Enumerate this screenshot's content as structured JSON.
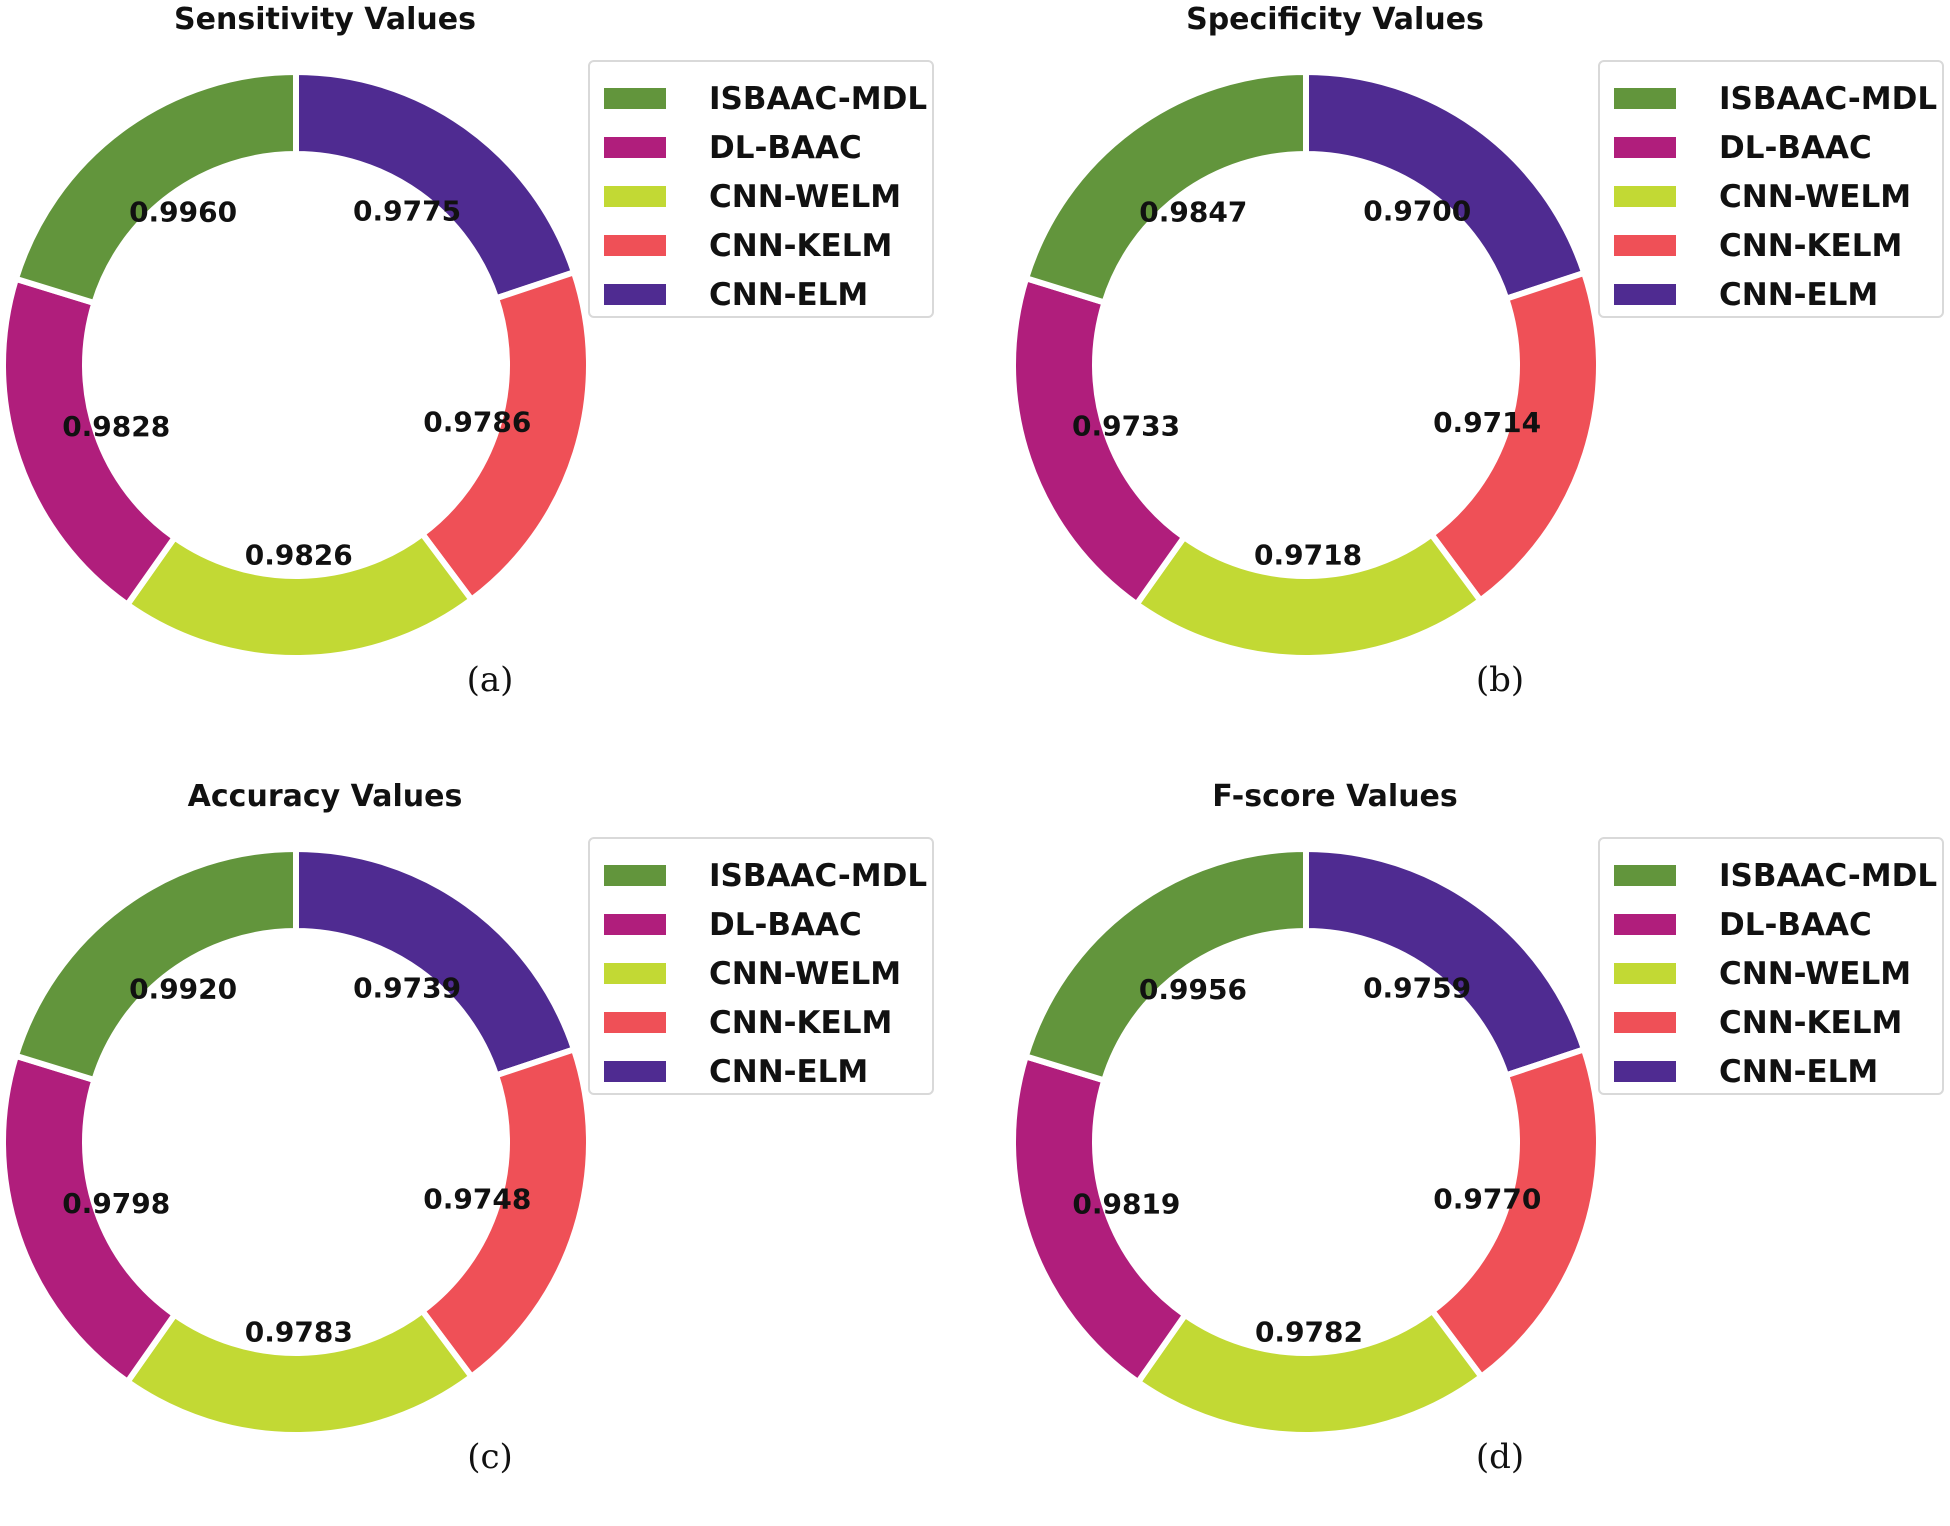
{
  "colors": {
    "ISBAAC-MDL": "#62953c",
    "DL-BAAC": "#b01e7c",
    "CNN-WELM": "#c2d934",
    "CNN-KELM": "#ef5057",
    "CNN-ELM": "#4f2b91"
  },
  "chart_data": [
    {
      "type": "pie",
      "title": "Sensitivity Values",
      "caption": "(a)",
      "legend": [
        "ISBAAC-MDL",
        "DL-BAAC",
        "CNN-WELM",
        "CNN-KELM",
        "CNN-ELM"
      ],
      "legend_position": "right",
      "categories": [
        "CNN-ELM",
        "CNN-KELM",
        "CNN-WELM",
        "DL-BAAC",
        "ISBAAC-MDL"
      ],
      "values": [
        0.9775,
        0.9786,
        0.9826,
        0.9828,
        0.996
      ],
      "labels": [
        "0.9775",
        "0.9786",
        "0.9826",
        "0.9828",
        "0.9960"
      ]
    },
    {
      "type": "pie",
      "title": "Specificity Values",
      "caption": "(b)",
      "legend": [
        "ISBAAC-MDL",
        "DL-BAAC",
        "CNN-WELM",
        "CNN-KELM",
        "CNN-ELM"
      ],
      "legend_position": "right",
      "categories": [
        "CNN-ELM",
        "CNN-KELM",
        "CNN-WELM",
        "DL-BAAC",
        "ISBAAC-MDL"
      ],
      "values": [
        0.97,
        0.9714,
        0.9718,
        0.9733,
        0.9847
      ],
      "labels": [
        "0.9700",
        "0.9714",
        "0.9718",
        "0.9733",
        "0.9847"
      ]
    },
    {
      "type": "pie",
      "title": "Accuracy Values",
      "caption": "(c)",
      "legend": [
        "ISBAAC-MDL",
        "DL-BAAC",
        "CNN-WELM",
        "CNN-KELM",
        "CNN-ELM"
      ],
      "legend_position": "right",
      "categories": [
        "CNN-ELM",
        "CNN-KELM",
        "CNN-WELM",
        "DL-BAAC",
        "ISBAAC-MDL"
      ],
      "values": [
        0.9739,
        0.9748,
        0.9783,
        0.9798,
        0.992
      ],
      "labels": [
        "0.9739",
        "0.9748",
        "0.9783",
        "0.9798",
        "0.9920"
      ]
    },
    {
      "type": "pie",
      "title": "F-score Values",
      "caption": "(d)",
      "legend": [
        "ISBAAC-MDL",
        "DL-BAAC",
        "CNN-WELM",
        "CNN-KELM",
        "CNN-ELM"
      ],
      "legend_position": "right",
      "categories": [
        "CNN-ELM",
        "CNN-KELM",
        "CNN-WELM",
        "DL-BAAC",
        "ISBAAC-MDL"
      ],
      "values": [
        0.9759,
        0.977,
        0.9782,
        0.9819,
        0.9956
      ],
      "labels": [
        "0.9759",
        "0.9770",
        "0.9782",
        "0.9819",
        "0.9956"
      ]
    }
  ]
}
